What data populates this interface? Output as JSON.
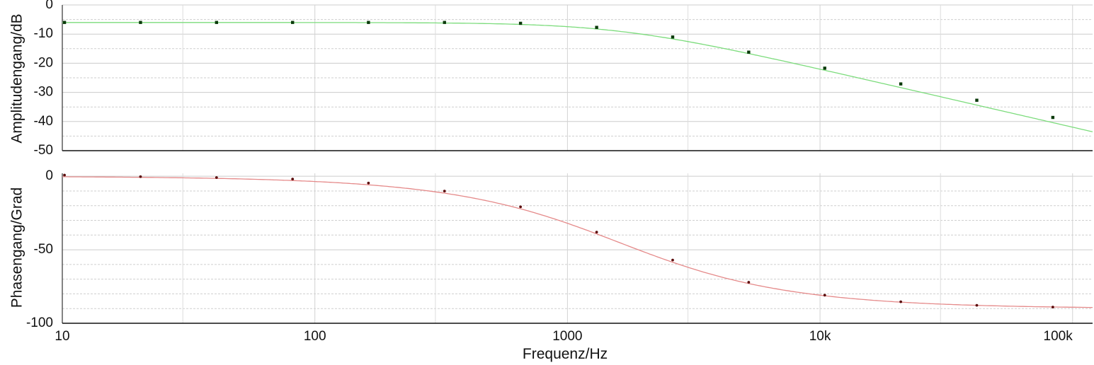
{
  "chart_data": {
    "type": "line",
    "xlabel": "Frequenz/Hz",
    "x_scale": "log",
    "xlim": [
      10,
      120000
    ],
    "x_ticks": [
      10,
      100,
      1000,
      10000,
      100000
    ],
    "x_tick_labels": [
      "10",
      "100",
      "1000",
      "10k",
      "100k"
    ],
    "x_minor_grid": [
      30,
      300,
      3000,
      30000
    ],
    "panels": [
      {
        "id": "amplitude",
        "ylabel": "Amplitudengang/dB",
        "ylim": [
          -50,
          0
        ],
        "y_ticks": [
          0,
          -10,
          -20,
          -30,
          -40,
          -50
        ],
        "y_tick_labels": [
          "0",
          "-10",
          "-20",
          "-30",
          "-40",
          "-50"
        ],
        "y_minor_grid": [
          -5,
          -15,
          -25,
          -35,
          -45
        ],
        "line_color": "#7cdc7c",
        "marker_color": "#0a3a0a",
        "series": [
          {
            "name": "Amplitudengang",
            "offset_db": -6.02,
            "corner_hz": 1600,
            "x_range": [
              10,
              120000
            ]
          }
        ],
        "markers": {
          "x": [
            10.2,
            20.4,
            40.8,
            81.6,
            163,
            326,
            652,
            1305,
            2610,
            5220,
            10440,
            20880,
            41760,
            83520
          ],
          "y": [
            -6.0,
            -6.0,
            -6.0,
            -6.0,
            -6.0,
            -6.0,
            -6.3,
            -7.7,
            -11.0,
            -16.2,
            -21.7,
            -27.1,
            -32.7,
            -38.6
          ]
        }
      },
      {
        "id": "phase",
        "ylabel": "Phasengang/Grad",
        "ylim": [
          -100,
          2
        ],
        "y_ticks": [
          0,
          -50,
          -100
        ],
        "y_tick_labels": [
          "0",
          "-50",
          "-100"
        ],
        "y_minor_grid": [
          -10,
          -20,
          -30,
          -40,
          -60,
          -70,
          -80,
          -90
        ],
        "line_color": "#e58a8a",
        "marker_color": "#5a0a0a",
        "series": [
          {
            "name": "Phasengang",
            "corner_hz": 1600,
            "x_range": [
              10,
              120000
            ]
          }
        ],
        "markers": {
          "x": [
            10.2,
            20.4,
            40.8,
            81.6,
            163,
            326,
            652,
            1305,
            2610,
            5220,
            10440,
            20880,
            41760,
            83520
          ],
          "y": [
            0.8,
            -0.3,
            -0.9,
            -1.9,
            -4.6,
            -10.1,
            -20.8,
            -38.0,
            -57.0,
            -72.1,
            -80.9,
            -85.4,
            -87.8,
            -89.0
          ]
        }
      }
    ]
  }
}
